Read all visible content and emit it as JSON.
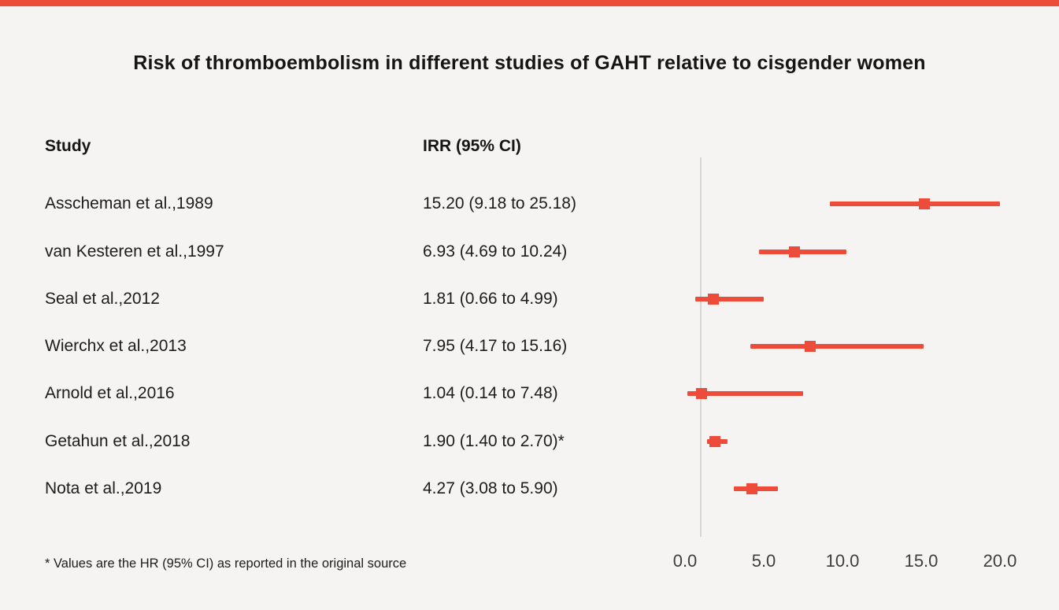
{
  "page": {
    "title": "Risk of thromboembolism in different studies of GAHT relative to cisgender women",
    "footnote": "* Values are the HR (95% CI) as reported in the original source",
    "accent_color": "#ee4c3a",
    "background_color": "#f5f4f2"
  },
  "table": {
    "study_header": "Study",
    "irr_header": "IRR (95% CI)"
  },
  "chart_data": {
    "type": "forest",
    "title": "Risk of thromboembolism in different studies of GAHT relative to cisgender women",
    "xlabel": "",
    "xlim": [
      0,
      20
    ],
    "reference_line": 1.0,
    "marker_color": "#ee4c3a",
    "x_ticks": [
      {
        "value": 0,
        "label": "0.0"
      },
      {
        "value": 5,
        "label": "5.0"
      },
      {
        "value": 10,
        "label": "10.0"
      },
      {
        "value": 15,
        "label": "15.0"
      },
      {
        "value": 20,
        "label": "20.0"
      }
    ],
    "studies": [
      {
        "label": "Asscheman et al.,1989",
        "irr_text": "15.20 (9.18 to 25.18)",
        "estimate": 15.2,
        "ci_low": 9.18,
        "ci_high": 25.18
      },
      {
        "label": "van Kesteren et al.,1997",
        "irr_text": "6.93 (4.69 to 10.24)",
        "estimate": 6.93,
        "ci_low": 4.69,
        "ci_high": 10.24
      },
      {
        "label": "Seal et al.,2012",
        "irr_text": "1.81 (0.66 to 4.99)",
        "estimate": 1.81,
        "ci_low": 0.66,
        "ci_high": 4.99
      },
      {
        "label": "Wierchx et al.,2013",
        "irr_text": "7.95 (4.17 to 15.16)",
        "estimate": 7.95,
        "ci_low": 4.17,
        "ci_high": 15.16
      },
      {
        "label": "Arnold et al.,2016",
        "irr_text": "1.04 (0.14 to 7.48)",
        "estimate": 1.04,
        "ci_low": 0.14,
        "ci_high": 7.48
      },
      {
        "label": "Getahun et al.,2018",
        "irr_text": "1.90 (1.40 to 2.70)*",
        "estimate": 1.9,
        "ci_low": 1.4,
        "ci_high": 2.7
      },
      {
        "label": "Nota et al.,2019",
        "irr_text": "4.27 (3.08 to 5.90)",
        "estimate": 4.27,
        "ci_low": 3.08,
        "ci_high": 5.9
      }
    ]
  }
}
